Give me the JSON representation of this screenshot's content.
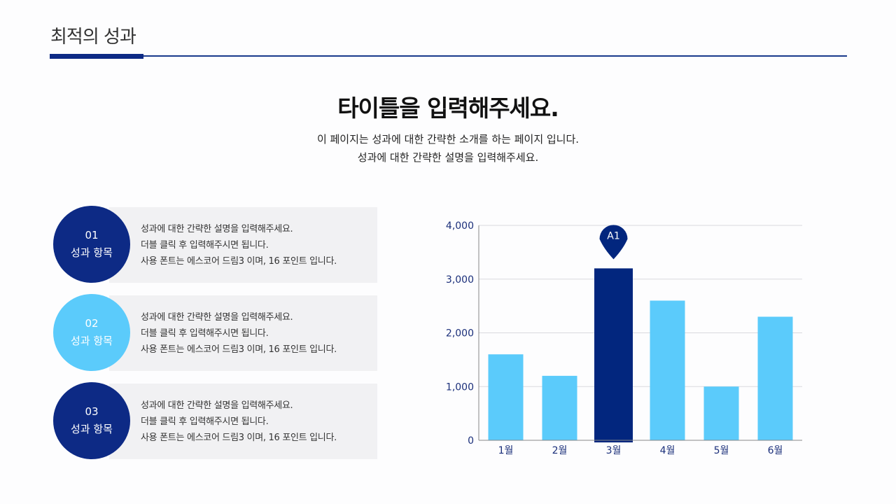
{
  "header": {
    "title": "최적의 성과"
  },
  "headline": "타이틀을 입력해주세요.",
  "subtitle": [
    "이 페이지는 성과에 대한 간략한 소개를 하는 페이지 입니다.",
    "성과에 대한 간략한 설명을 입력해주세요."
  ],
  "items": [
    {
      "number": "01",
      "label": "성과 항목",
      "color": "#0d2a85",
      "lines": [
        "성과에 대한 간략한 설명을 입력해주세요.",
        "더블 클릭 후 입력해주시면 됩니다.",
        "사용 폰트는 에스코어 드림3 이며, 16 포인트 입니다."
      ]
    },
    {
      "number": "02",
      "label": "성과 항목",
      "color": "#5bcbfb",
      "lines": [
        "성과에 대한 간략한 설명을 입력해주세요.",
        "더블 클릭 후 입력해주시면 됩니다.",
        "사용 폰트는 에스코어 드림3 이며, 16 포인트 입니다."
      ]
    },
    {
      "number": "03",
      "label": "성과 항목",
      "color": "#0d2a85",
      "lines": [
        "성과에 대한 간략한 설명을 입력해주세요.",
        "더블 클릭 후 입력해주시면 됩니다.",
        "사용 폰트는 에스코어 드림3 이며, 16 포인트 입니다."
      ]
    }
  ],
  "chart_data": {
    "type": "bar",
    "categories": [
      "1월",
      "2월",
      "3월",
      "4월",
      "5월",
      "6월"
    ],
    "values": [
      1600,
      1200,
      3200,
      2600,
      1000,
      2300
    ],
    "ylim": [
      0,
      4000
    ],
    "yticks": [
      "0",
      "1,000",
      "2,000",
      "3,000",
      "4,000"
    ],
    "grid": true,
    "highlight_index": 2,
    "highlight_label": "A1",
    "colors": {
      "bar": "#5bcbfb",
      "highlight": "#02267e",
      "axis_text": "#1b2f7a"
    }
  }
}
